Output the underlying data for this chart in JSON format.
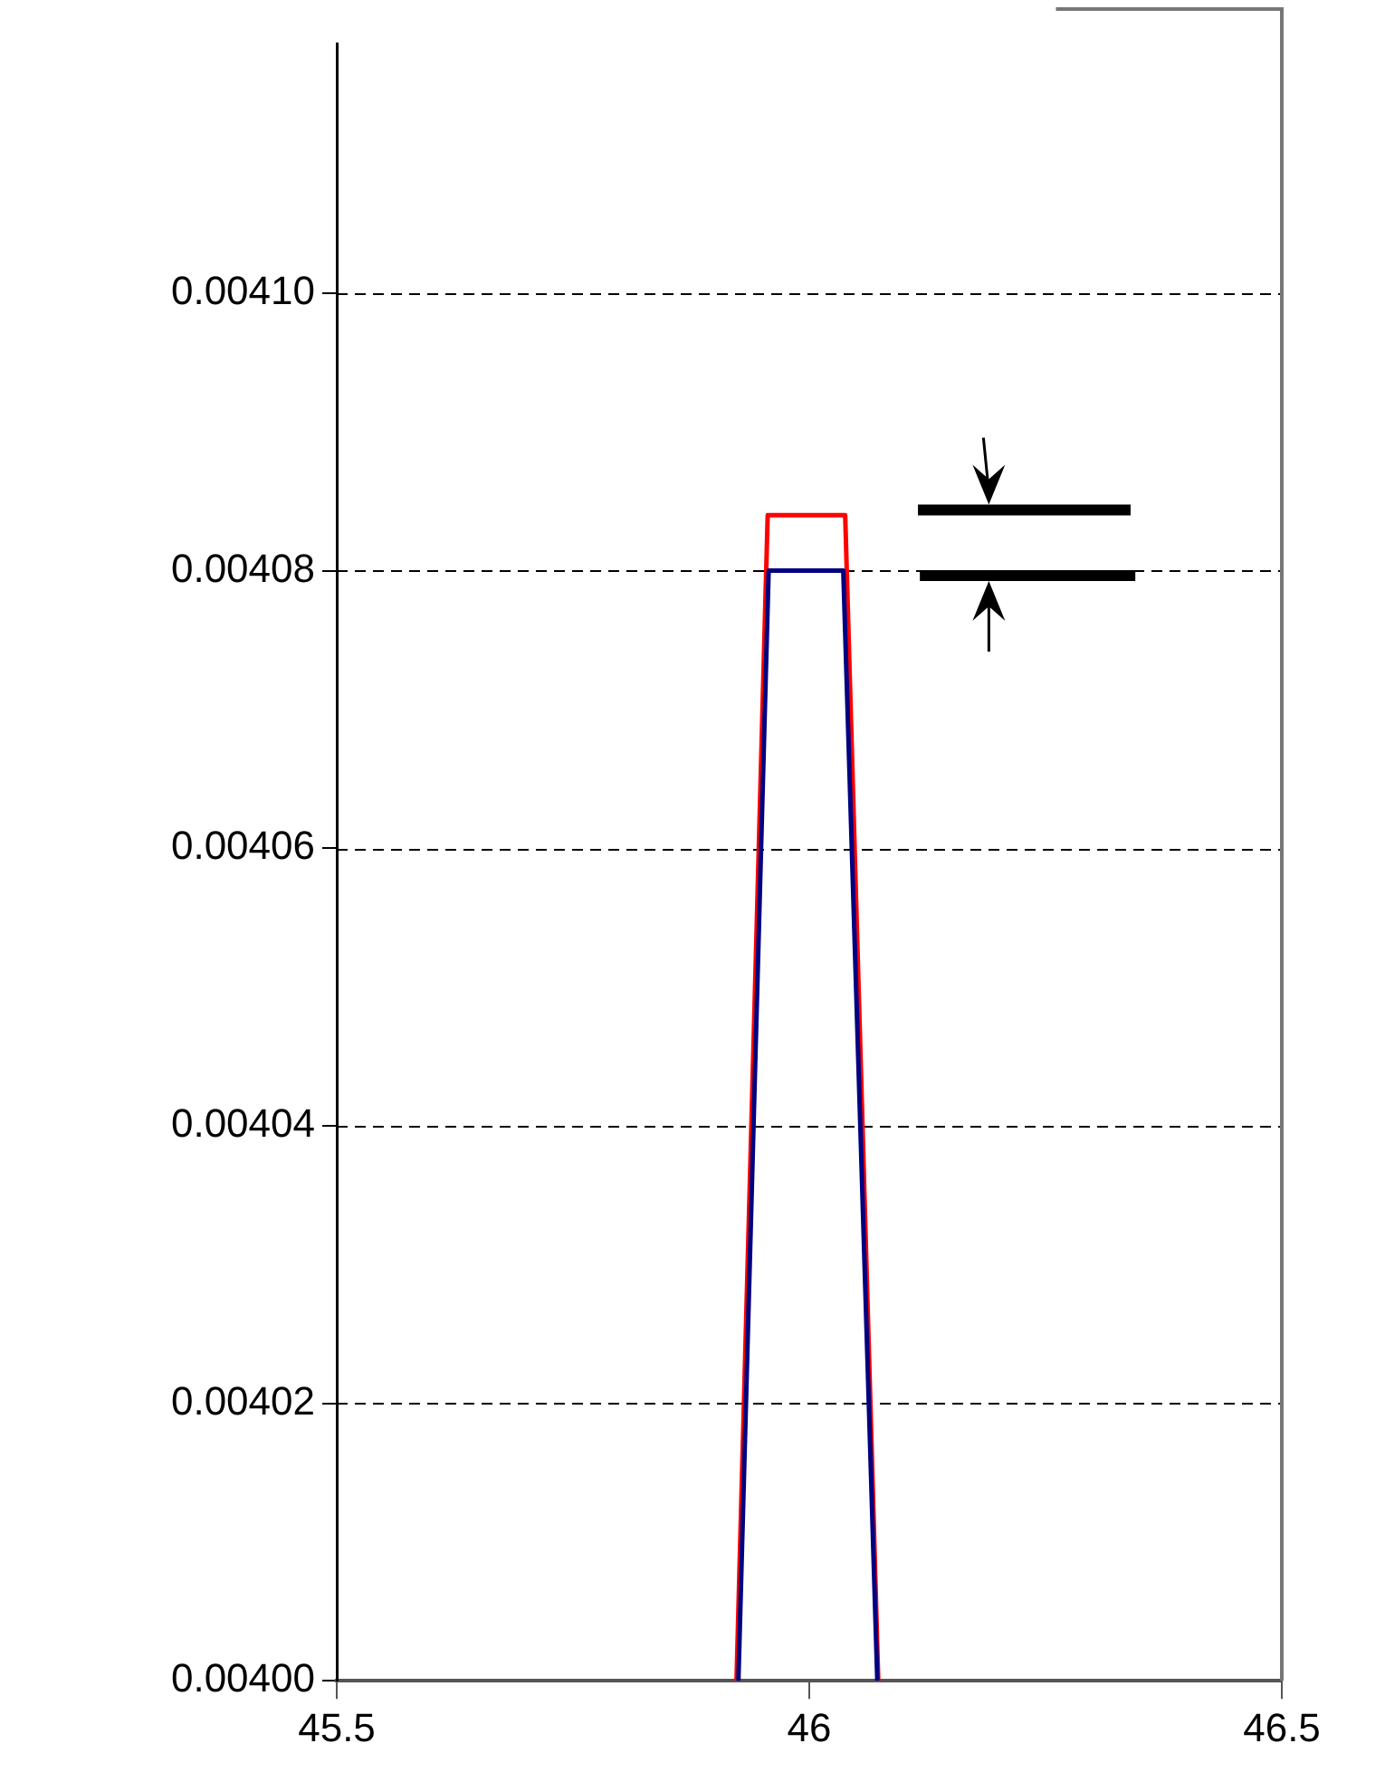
{
  "chart_data": {
    "type": "line",
    "xlim": [
      45.5,
      46.5
    ],
    "xticks": [
      45.5,
      46,
      46.5
    ],
    "ylim": [
      0.004,
      0.004118
    ],
    "yticks": [
      {
        "value": 0.004,
        "label": "0.00400"
      },
      {
        "value": 0.00402,
        "label": "0.00402"
      },
      {
        "value": 0.00404,
        "label": "0.00404"
      },
      {
        "value": 0.00406,
        "label": "0.00406"
      },
      {
        "value": 0.00408,
        "label": "0.00408"
      },
      {
        "value": 0.0041,
        "label": "0.00410"
      }
    ],
    "grid": "y",
    "line_style": "solid",
    "marker": "none",
    "series": [
      {
        "color": "#000080",
        "x": [
          45.925,
          45.957,
          46.036,
          46.072
        ],
        "values": [
          0.004,
          0.00408,
          0.00408,
          0.004
        ]
      },
      {
        "color": "#ff0000",
        "x": [
          45.923,
          45.956,
          46.038,
          46.073
        ],
        "values": [
          0.004,
          0.004084,
          0.004084,
          0.004
        ]
      }
    ]
  }
}
